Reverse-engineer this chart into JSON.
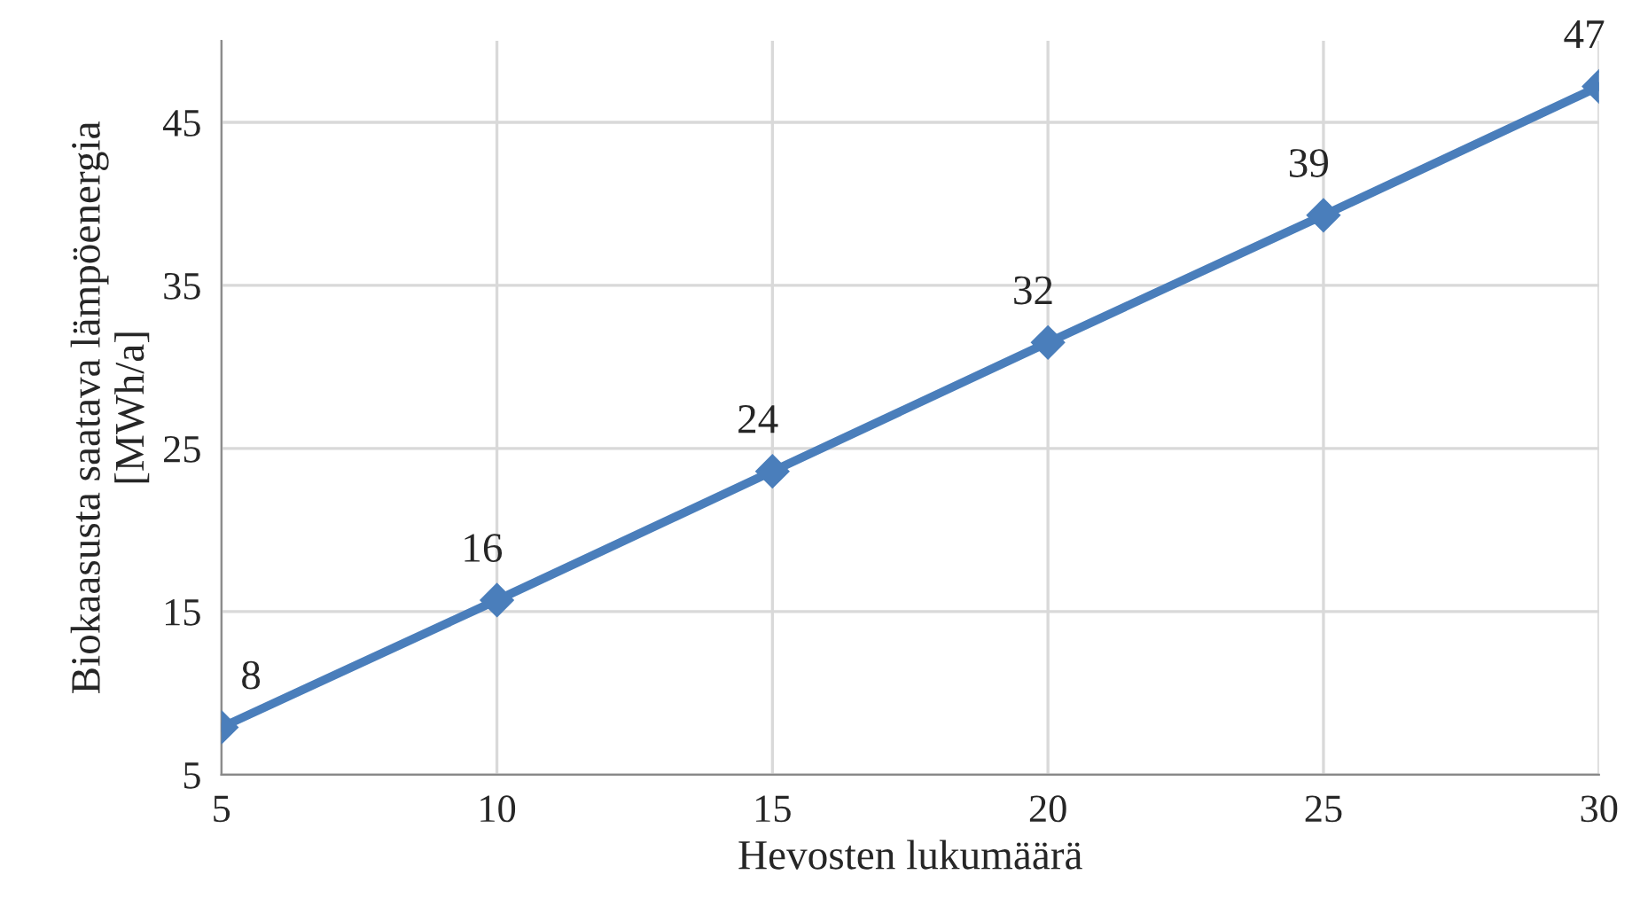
{
  "chart_data": {
    "type": "line",
    "xlabel": "Hevosten lukumäärä",
    "ylabel": "Biokaasusta saatava lämpöenergia\n[MWh/a]",
    "x": [
      5,
      10,
      15,
      20,
      25,
      30
    ],
    "series": [
      {
        "color": "#4a7ebb",
        "values": [
          7.9,
          15.7,
          23.6,
          31.5,
          39.3,
          47.2
        ],
        "value_labels": [
          "8",
          "16",
          "24",
          "32",
          "39",
          "47"
        ]
      }
    ],
    "xlim": [
      5,
      30
    ],
    "xticks": [
      5,
      10,
      15,
      20,
      25,
      30
    ],
    "ylim": [
      5,
      50
    ],
    "yticks": [
      5,
      15,
      25,
      35,
      45
    ],
    "grid": true,
    "marker": "diamond",
    "line_style": "solid"
  }
}
